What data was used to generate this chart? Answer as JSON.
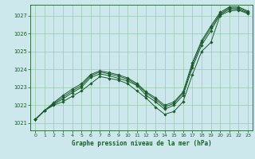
{
  "xlabel": "Graphe pression niveau de la mer (hPa)",
  "bg_color": "#cce8ec",
  "grid_color": "#99ccaa",
  "line_color": "#1a5c2a",
  "xlim": [
    -0.5,
    23.5
  ],
  "ylim": [
    1020.6,
    1027.6
  ],
  "yticks": [
    1021,
    1022,
    1023,
    1024,
    1025,
    1026,
    1027
  ],
  "xticks": [
    0,
    1,
    2,
    3,
    4,
    5,
    6,
    7,
    8,
    9,
    10,
    11,
    12,
    13,
    14,
    15,
    16,
    17,
    18,
    19,
    20,
    21,
    22,
    23
  ],
  "series1": [
    1021.2,
    1021.7,
    1022.0,
    1022.2,
    1022.5,
    1022.8,
    1023.2,
    1023.6,
    1023.5,
    1023.4,
    1023.2,
    1022.8,
    1022.4,
    1021.9,
    1021.5,
    1021.65,
    1022.2,
    1023.7,
    1025.0,
    1025.5,
    1027.0,
    1027.25,
    1027.3,
    1027.1
  ],
  "series2": [
    1021.2,
    1021.7,
    1022.05,
    1022.35,
    1022.7,
    1023.0,
    1023.55,
    1023.75,
    1023.65,
    1023.5,
    1023.35,
    1023.1,
    1022.55,
    1022.2,
    1021.78,
    1022.0,
    1022.55,
    1024.1,
    1025.35,
    1026.15,
    1027.05,
    1027.35,
    1027.35,
    1027.15
  ],
  "series3": [
    1021.2,
    1021.7,
    1022.1,
    1022.45,
    1022.8,
    1023.1,
    1023.65,
    1023.85,
    1023.75,
    1023.62,
    1023.45,
    1023.15,
    1022.68,
    1022.33,
    1021.9,
    1022.1,
    1022.68,
    1024.25,
    1025.5,
    1026.3,
    1027.1,
    1027.42,
    1027.42,
    1027.2
  ],
  "series4": [
    1021.2,
    1021.7,
    1022.15,
    1022.55,
    1022.9,
    1023.2,
    1023.72,
    1023.92,
    1023.82,
    1023.7,
    1023.52,
    1023.22,
    1022.75,
    1022.42,
    1022.0,
    1022.18,
    1022.75,
    1024.38,
    1025.6,
    1026.42,
    1027.18,
    1027.48,
    1027.48,
    1027.25
  ]
}
